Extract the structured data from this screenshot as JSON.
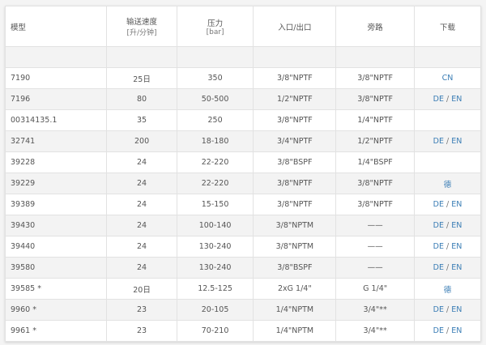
{
  "headers": [
    {
      "label": "模型",
      "sub": ""
    },
    {
      "label": "输送速度",
      "sub": "[升/分钟]"
    },
    {
      "label": "压力",
      "sub": "[bar]"
    },
    {
      "label": "入口/出口",
      "sub": ""
    },
    {
      "label": "旁路",
      "sub": ""
    },
    {
      "label": "下载",
      "sub": ""
    }
  ],
  "link_color": "#3a7db5",
  "rows": [
    {
      "model": "7190",
      "flow": "25日",
      "pressure": "350",
      "inlet": "3/8\"NPTF",
      "bypass": "3/8\"NPTF",
      "links": [
        "CN"
      ]
    },
    {
      "model": "7196",
      "flow": "80",
      "pressure": "50-500",
      "inlet": "1/2\"NPTF",
      "bypass": "3/8\"NPTF",
      "links": [
        "DE",
        "EN"
      ]
    },
    {
      "model": "00314135.1",
      "flow": "35",
      "pressure": "250",
      "inlet": "3/8\"NPTF",
      "bypass": "1/4\"NPTF",
      "links": []
    },
    {
      "model": "32741",
      "flow": "200",
      "pressure": "18-180",
      "inlet": "3/4\"NPTF",
      "bypass": "1/2\"NPTF",
      "links": [
        "DE",
        "EN"
      ]
    },
    {
      "model": "39228",
      "flow": "24",
      "pressure": "22-220",
      "inlet": "3/8\"BSPF",
      "bypass": "1/4\"BSPF",
      "links": []
    },
    {
      "model": "39229",
      "flow": "24",
      "pressure": "22-220",
      "inlet": "3/8\"NPTF",
      "bypass": "3/8\"NPTF",
      "links": [
        "德"
      ]
    },
    {
      "model": "39389",
      "flow": "24",
      "pressure": "15-150",
      "inlet": "3/8\"NPTF",
      "bypass": "3/8\"NPTF",
      "links": [
        "DE",
        "EN"
      ]
    },
    {
      "model": "39430",
      "flow": "24",
      "pressure": "100-140",
      "inlet": "3/8\"NPTM",
      "bypass": "——",
      "links": [
        "DE",
        "EN"
      ]
    },
    {
      "model": "39440",
      "flow": "24",
      "pressure": "130-240",
      "inlet": "3/8\"NPTM",
      "bypass": "——",
      "links": [
        "DE",
        "EN"
      ]
    },
    {
      "model": "39580",
      "flow": "24",
      "pressure": "130-240",
      "inlet": "3/8\"BSPF",
      "bypass": "——",
      "links": [
        "DE",
        "EN"
      ]
    },
    {
      "model": "39585 *",
      "flow": "20日",
      "pressure": "12.5-125",
      "inlet": "2xG 1/4\"",
      "bypass": "G 1/4\"",
      "links": [
        "德"
      ]
    },
    {
      "model": "9960 *",
      "flow": "23",
      "pressure": "20-105",
      "inlet": "1/4\"NPTM",
      "bypass": "3/4\"**",
      "links": [
        "DE",
        "EN"
      ]
    },
    {
      "model": "9961 *",
      "flow": "23",
      "pressure": "70-210",
      "inlet": "1/4\"NPTM",
      "bypass": "3/4\"**",
      "links": [
        "DE",
        "EN"
      ]
    }
  ]
}
